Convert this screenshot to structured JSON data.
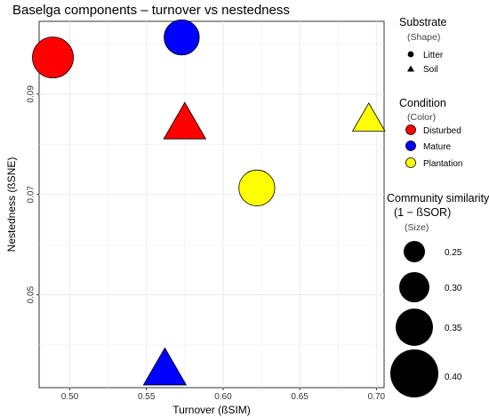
{
  "chart_data": {
    "type": "scatter",
    "title": "Baselga components – turnover vs nestedness",
    "xlabel": "Turnover (ßSIM)",
    "ylabel": "Nestedness (ßSNE)",
    "xlim": [
      0.48,
      0.705
    ],
    "ylim": [
      0.0315,
      0.1045
    ],
    "x_ticks": [
      0.5,
      0.55,
      0.6,
      0.65,
      0.7
    ],
    "x_tick_labels": [
      "0.50",
      "0.55",
      "0.60",
      "0.65",
      "0.70"
    ],
    "y_ticks": [
      0.05,
      0.07,
      0.09
    ],
    "y_tick_labels": [
      "0.05",
      "0.07",
      "0.09"
    ],
    "grid": true,
    "points": [
      {
        "x": 0.489,
        "y": 0.0973,
        "substrate": "Litter",
        "condition": "Disturbed",
        "size": 0.368
      },
      {
        "x": 0.573,
        "y": 0.1013,
        "substrate": "Litter",
        "condition": "Mature",
        "size": 0.272
      },
      {
        "x": 0.575,
        "y": 0.0835,
        "substrate": "Soil",
        "condition": "Disturbed",
        "size": 0.372
      },
      {
        "x": 0.695,
        "y": 0.0845,
        "substrate": "Soil",
        "condition": "Plantation",
        "size": 0.22
      },
      {
        "x": 0.622,
        "y": 0.0713,
        "substrate": "Litter",
        "condition": "Plantation",
        "size": 0.283
      },
      {
        "x": 0.562,
        "y": 0.0345,
        "substrate": "Soil",
        "condition": "Mature",
        "size": 0.385
      }
    ],
    "legend": {
      "placement": "right",
      "shape": {
        "title": "Substrate",
        "subtitle": "(Shape)",
        "items": [
          {
            "label": "Litter",
            "shape": "circle"
          },
          {
            "label": "Soil",
            "shape": "triangle"
          }
        ]
      },
      "color": {
        "title": "Condition",
        "subtitle": "(Color)",
        "items": [
          {
            "label": "Disturbed",
            "color": "#ff0000"
          },
          {
            "label": "Mature",
            "color": "#0000ff"
          },
          {
            "label": "Plantation",
            "color": "#ffff00"
          }
        ]
      },
      "size": {
        "title_line1": "Community similarity",
        "title_line2": "(1 − ßSOR)",
        "subtitle": "(Size)",
        "items": [
          {
            "label": "0.25",
            "value": 0.25
          },
          {
            "label": "0.30",
            "value": 0.3
          },
          {
            "label": "0.35",
            "value": 0.35
          },
          {
            "label": "0.40",
            "value": 0.4
          }
        ]
      }
    }
  }
}
